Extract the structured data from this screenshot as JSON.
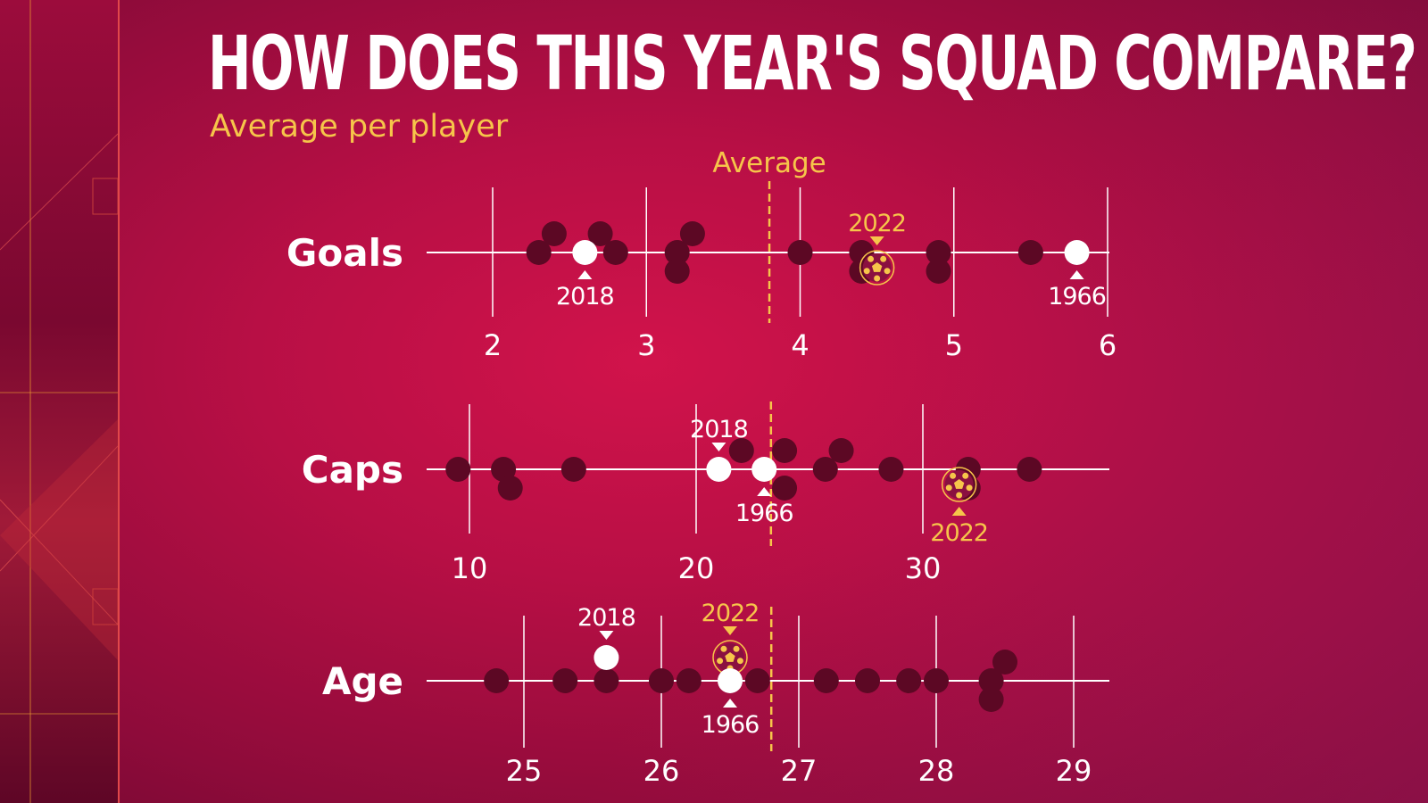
{
  "title": "HOW DOES THIS YEAR'S SQUAD COMPARE?",
  "subtitle": "Average per player",
  "average_label": "Average",
  "colors": {
    "background": "#c0104a",
    "dot": "#5c0824",
    "highlight": "#ffffff",
    "accent": "#f6c54a",
    "axis": "#ffffff"
  },
  "chart_data": [
    {
      "type": "scatter",
      "ylabel": "Goals",
      "xlim": [
        2,
        6
      ],
      "ticks": [
        "2",
        "3",
        "4",
        "5",
        "6"
      ],
      "tick_values": [
        2,
        3,
        4,
        5,
        6
      ],
      "average": 3.8,
      "values": [
        2.3,
        2.4,
        2.7,
        2.8,
        3.2,
        3.2,
        3.3,
        4.0,
        4.4,
        4.4,
        4.9,
        4.9,
        5.5
      ],
      "highlights": [
        {
          "label": "2018",
          "value": 2.6,
          "marker": "white-dot",
          "marker_position": "on-line",
          "label_position": "below"
        },
        {
          "label": "2022",
          "value": 4.5,
          "marker": "football-icon",
          "marker_position": "below-line",
          "label_position": "above"
        },
        {
          "label": "1966",
          "value": 5.8,
          "marker": "white-dot",
          "marker_position": "on-line",
          "label_position": "below"
        }
      ]
    },
    {
      "type": "scatter",
      "ylabel": "Caps",
      "xlim": [
        10,
        30
      ],
      "ticks": [
        "10",
        "20",
        "30"
      ],
      "tick_values": [
        10,
        20,
        30
      ],
      "average": 23.3,
      "values": [
        9.5,
        11.5,
        11.8,
        14.6,
        22.0,
        23.9,
        23.9,
        25.7,
        26.4,
        28.6,
        32.0,
        32.0,
        34.7
      ],
      "highlights": [
        {
          "label": "2018",
          "value": 21.0,
          "marker": "white-dot",
          "marker_position": "on-line",
          "label_position": "above"
        },
        {
          "label": "1966",
          "value": 23.0,
          "marker": "white-dot",
          "marker_position": "on-line",
          "label_position": "below"
        },
        {
          "label": "2022",
          "value": 31.6,
          "marker": "football-icon",
          "marker_position": "below-line",
          "label_position": "below"
        }
      ]
    },
    {
      "type": "scatter",
      "ylabel": "Age",
      "xlim": [
        25,
        29
      ],
      "ticks": [
        "25",
        "26",
        "27",
        "28",
        "29"
      ],
      "tick_values": [
        25,
        26,
        27,
        28,
        29
      ],
      "average": 26.8,
      "values": [
        24.8,
        25.3,
        25.6,
        26.0,
        26.2,
        26.7,
        27.2,
        27.5,
        27.8,
        28.0,
        28.4,
        28.5,
        28.4
      ],
      "highlights": [
        {
          "label": "2018",
          "value": 25.6,
          "marker": "white-dot",
          "marker_position": "above-line",
          "label_position": "above"
        },
        {
          "label": "2022",
          "value": 26.5,
          "marker": "football-icon",
          "marker_position": "above-line",
          "label_position": "above"
        },
        {
          "label": "1966",
          "value": 26.5,
          "marker": "white-dot",
          "marker_position": "on-line",
          "label_position": "below"
        }
      ]
    }
  ]
}
